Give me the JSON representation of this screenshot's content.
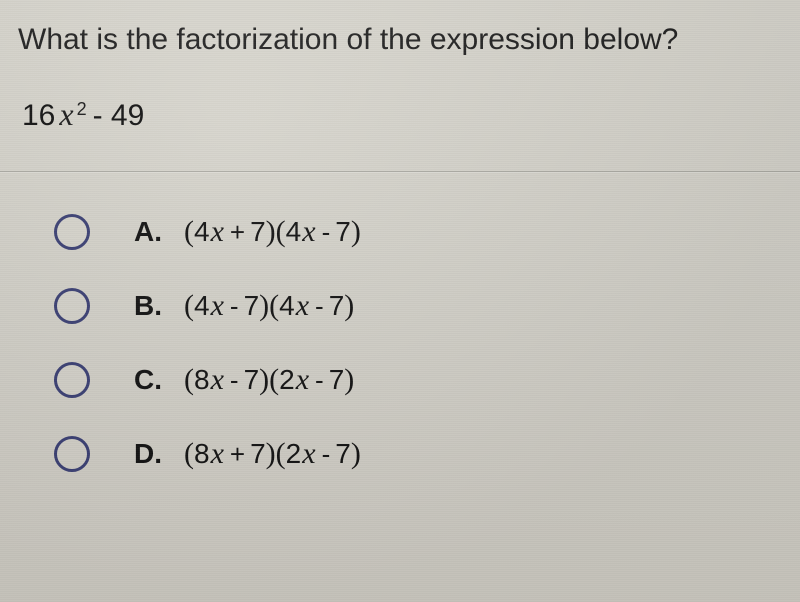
{
  "question_text": "What is the factorization of the expression below?",
  "expression": {
    "coef": "16",
    "var": "x",
    "sup": "2",
    "rest": "- 49"
  },
  "divider_color": "rgba(0,0,0,0.18)",
  "radio_border": "#3a3f73",
  "background_color": "#d4d2ca",
  "text_color": "#111111",
  "options": [
    {
      "label": "A.",
      "lhs_coef": "4",
      "lhs_op": "+",
      "lhs_const": "7",
      "rhs_coef": "4",
      "rhs_op": "-",
      "rhs_const": "7"
    },
    {
      "label": "B.",
      "lhs_coef": "4",
      "lhs_op": "-",
      "lhs_const": "7",
      "rhs_coef": "4",
      "rhs_op": "-",
      "rhs_const": "7"
    },
    {
      "label": "C.",
      "lhs_coef": "8",
      "lhs_op": "-",
      "lhs_const": "7",
      "rhs_coef": "2",
      "rhs_op": "-",
      "rhs_const": "7"
    },
    {
      "label": "D.",
      "lhs_coef": "8",
      "lhs_op": "+",
      "lhs_const": "7",
      "rhs_coef": "2",
      "rhs_op": "-",
      "rhs_const": "7"
    }
  ]
}
